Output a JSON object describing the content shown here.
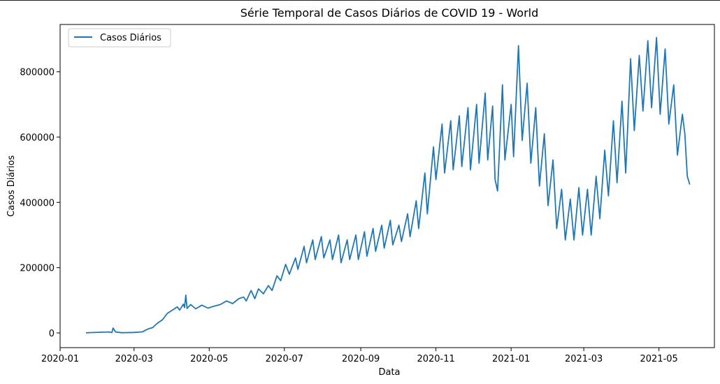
{
  "chart_data": {
    "type": "line",
    "title": "Série Temporal de Casos Diários de COVID 19 - World",
    "xlabel": "Data",
    "ylabel": "Casos Diários",
    "x_range": [
      "2020-01-01",
      "2021-06-15"
    ],
    "ylim": [
      -45000,
      945000
    ],
    "x_ticks": [
      "2020-01-01",
      "2020-03-01",
      "2020-05-01",
      "2020-07-01",
      "2020-09-01",
      "2020-11-01",
      "2021-01-01",
      "2021-03-01",
      "2021-05-01"
    ],
    "x_tick_labels": [
      "2020-01",
      "2020-03",
      "2020-05",
      "2020-07",
      "2020-09",
      "2020-11",
      "2021-01",
      "2021-03",
      "2021-05"
    ],
    "y_ticks": [
      0,
      200000,
      400000,
      600000,
      800000
    ],
    "y_tick_labels": [
      "0",
      "200000",
      "400000",
      "600000",
      "800000"
    ],
    "grid": false,
    "legend": {
      "position": "top-left"
    },
    "series": [
      {
        "name": "Casos Diários",
        "color": "#1f77b4",
        "points": [
          [
            "2020-01-22",
            500
          ],
          [
            "2020-02-01",
            2000
          ],
          [
            "2020-02-10",
            3000
          ],
          [
            "2020-02-12",
            1000
          ],
          [
            "2020-02-13",
            15000
          ],
          [
            "2020-02-15",
            3000
          ],
          [
            "2020-02-20",
            600
          ],
          [
            "2020-03-01",
            1500
          ],
          [
            "2020-03-08",
            3500
          ],
          [
            "2020-03-10",
            8000
          ],
          [
            "2020-03-13",
            13000
          ],
          [
            "2020-03-16",
            16000
          ],
          [
            "2020-03-20",
            30000
          ],
          [
            "2020-03-24",
            40000
          ],
          [
            "2020-03-28",
            60000
          ],
          [
            "2020-04-02",
            72000
          ],
          [
            "2020-04-05",
            80000
          ],
          [
            "2020-04-07",
            70000
          ],
          [
            "2020-04-10",
            88000
          ],
          [
            "2020-04-11",
            78000
          ],
          [
            "2020-04-12",
            116000
          ],
          [
            "2020-04-13",
            75000
          ],
          [
            "2020-04-16",
            87000
          ],
          [
            "2020-04-20",
            74000
          ],
          [
            "2020-04-25",
            85000
          ],
          [
            "2020-04-30",
            76000
          ],
          [
            "2020-05-05",
            82000
          ],
          [
            "2020-05-10",
            87000
          ],
          [
            "2020-05-15",
            98000
          ],
          [
            "2020-05-20",
            90000
          ],
          [
            "2020-05-25",
            105000
          ],
          [
            "2020-05-29",
            110000
          ],
          [
            "2020-05-31",
            98000
          ],
          [
            "2020-06-04",
            130000
          ],
          [
            "2020-06-07",
            105000
          ],
          [
            "2020-06-10",
            135000
          ],
          [
            "2020-06-14",
            120000
          ],
          [
            "2020-06-18",
            145000
          ],
          [
            "2020-06-21",
            130000
          ],
          [
            "2020-06-25",
            175000
          ],
          [
            "2020-06-28",
            160000
          ],
          [
            "2020-07-02",
            210000
          ],
          [
            "2020-07-05",
            180000
          ],
          [
            "2020-07-10",
            230000
          ],
          [
            "2020-07-12",
            195000
          ],
          [
            "2020-07-17",
            265000
          ],
          [
            "2020-07-19",
            215000
          ],
          [
            "2020-07-24",
            285000
          ],
          [
            "2020-07-26",
            225000
          ],
          [
            "2020-07-31",
            295000
          ],
          [
            "2020-08-02",
            230000
          ],
          [
            "2020-08-07",
            285000
          ],
          [
            "2020-08-09",
            225000
          ],
          [
            "2020-08-14",
            300000
          ],
          [
            "2020-08-16",
            215000
          ],
          [
            "2020-08-21",
            285000
          ],
          [
            "2020-08-23",
            225000
          ],
          [
            "2020-08-28",
            300000
          ],
          [
            "2020-08-30",
            225000
          ],
          [
            "2020-09-04",
            310000
          ],
          [
            "2020-09-06",
            235000
          ],
          [
            "2020-09-11",
            320000
          ],
          [
            "2020-09-13",
            250000
          ],
          [
            "2020-09-18",
            330000
          ],
          [
            "2020-09-20",
            260000
          ],
          [
            "2020-09-25",
            345000
          ],
          [
            "2020-09-27",
            270000
          ],
          [
            "2020-10-02",
            330000
          ],
          [
            "2020-10-04",
            280000
          ],
          [
            "2020-10-09",
            365000
          ],
          [
            "2020-10-11",
            295000
          ],
          [
            "2020-10-16",
            405000
          ],
          [
            "2020-10-18",
            320000
          ],
          [
            "2020-10-23",
            490000
          ],
          [
            "2020-10-25",
            365000
          ],
          [
            "2020-10-30",
            570000
          ],
          [
            "2020-11-01",
            470000
          ],
          [
            "2020-11-06",
            640000
          ],
          [
            "2020-11-08",
            490000
          ],
          [
            "2020-11-13",
            650000
          ],
          [
            "2020-11-15",
            500000
          ],
          [
            "2020-11-20",
            665000
          ],
          [
            "2020-11-22",
            510000
          ],
          [
            "2020-11-27",
            690000
          ],
          [
            "2020-11-29",
            500000
          ],
          [
            "2020-12-04",
            700000
          ],
          [
            "2020-12-06",
            520000
          ],
          [
            "2020-12-11",
            735000
          ],
          [
            "2020-12-13",
            530000
          ],
          [
            "2020-12-17",
            695000
          ],
          [
            "2020-12-19",
            470000
          ],
          [
            "2020-12-21",
            435000
          ],
          [
            "2020-12-25",
            760000
          ],
          [
            "2020-12-27",
            530000
          ],
          [
            "2021-01-01",
            700000
          ],
          [
            "2021-01-03",
            540000
          ],
          [
            "2021-01-07",
            880000
          ],
          [
            "2021-01-10",
            590000
          ],
          [
            "2021-01-14",
            765000
          ],
          [
            "2021-01-17",
            520000
          ],
          [
            "2021-01-21",
            690000
          ],
          [
            "2021-01-24",
            450000
          ],
          [
            "2021-01-28",
            610000
          ],
          [
            "2021-01-31",
            390000
          ],
          [
            "2021-02-04",
            530000
          ],
          [
            "2021-02-07",
            320000
          ],
          [
            "2021-02-11",
            440000
          ],
          [
            "2021-02-14",
            285000
          ],
          [
            "2021-02-18",
            410000
          ],
          [
            "2021-02-21",
            285000
          ],
          [
            "2021-02-25",
            445000
          ],
          [
            "2021-02-28",
            300000
          ],
          [
            "2021-03-04",
            440000
          ],
          [
            "2021-03-07",
            300000
          ],
          [
            "2021-03-11",
            480000
          ],
          [
            "2021-03-14",
            350000
          ],
          [
            "2021-03-18",
            560000
          ],
          [
            "2021-03-21",
            420000
          ],
          [
            "2021-03-25",
            650000
          ],
          [
            "2021-03-28",
            460000
          ],
          [
            "2021-04-01",
            710000
          ],
          [
            "2021-04-04",
            490000
          ],
          [
            "2021-04-08",
            840000
          ],
          [
            "2021-04-11",
            620000
          ],
          [
            "2021-04-15",
            850000
          ],
          [
            "2021-04-18",
            680000
          ],
          [
            "2021-04-22",
            895000
          ],
          [
            "2021-04-25",
            690000
          ],
          [
            "2021-04-29",
            905000
          ],
          [
            "2021-05-02",
            670000
          ],
          [
            "2021-05-06",
            870000
          ],
          [
            "2021-05-09",
            640000
          ],
          [
            "2021-05-13",
            760000
          ],
          [
            "2021-05-16",
            545000
          ],
          [
            "2021-05-20",
            670000
          ],
          [
            "2021-05-22",
            610000
          ],
          [
            "2021-05-24",
            480000
          ],
          [
            "2021-05-26",
            455000
          ]
        ]
      }
    ]
  }
}
